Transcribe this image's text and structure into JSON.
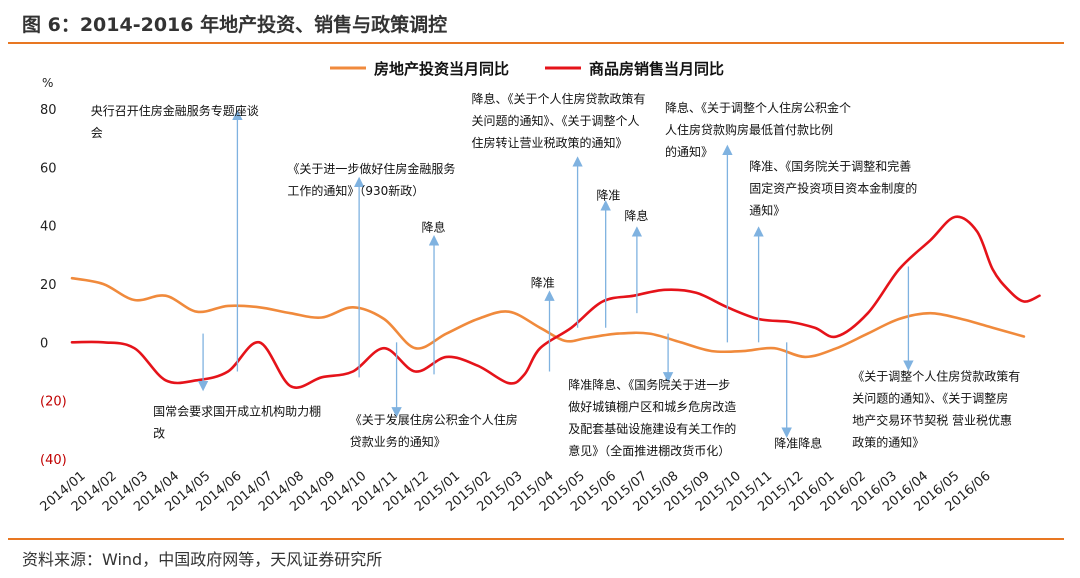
{
  "header": {
    "title": "图 6：2014-2016 年地产投资、销售与政策调控"
  },
  "footer": {
    "source": "资料来源：Wind，中国政府网等，天风证券研究所"
  },
  "colors": {
    "accent": "#e87722",
    "investment": "#f08a3c",
    "sales": "#e5131a",
    "arrow": "#7fb2e0",
    "negative_tick": "#c00000"
  },
  "chart_data": {
    "type": "line",
    "ylabel": "%",
    "ylim": [
      -40,
      80
    ],
    "yticks": [
      80,
      60,
      40,
      20,
      0,
      -20,
      -40
    ],
    "ytick_labels": [
      "80",
      "60",
      "40",
      "20",
      "0",
      "(20)",
      "(40)"
    ],
    "grid": false,
    "legend_position": "top",
    "categories": [
      "2014/01",
      "2014/02",
      "2014/03",
      "2014/04",
      "2014/05",
      "2014/06",
      "2014/07",
      "2014/08",
      "2014/09",
      "2014/10",
      "2014/11",
      "2014/12",
      "2015/01",
      "2015/02",
      "2015/03",
      "2015/04",
      "2015/05",
      "2015/06",
      "2015/07",
      "2015/08",
      "2015/09",
      "2015/10",
      "2015/11",
      "2015/12",
      "2016/01",
      "2016/02",
      "2016/03",
      "2016/04",
      "2016/05",
      "2016/06"
    ],
    "x_range": [
      0,
      30.6
    ],
    "series": [
      {
        "name": "房地产投资当月同比",
        "color": "#f08a3c",
        "points": [
          [
            0,
            22
          ],
          [
            1,
            20
          ],
          [
            2,
            14.5
          ],
          [
            3,
            16
          ],
          [
            4,
            10.5
          ],
          [
            5,
            12.5
          ],
          [
            6,
            12
          ],
          [
            7,
            10
          ],
          [
            8,
            8.5
          ],
          [
            9,
            12
          ],
          [
            10,
            8
          ],
          [
            11,
            -2
          ],
          [
            12,
            3
          ],
          [
            13,
            8
          ],
          [
            14,
            10.5
          ],
          [
            15,
            5
          ],
          [
            15.8,
            0.5
          ],
          [
            16.5,
            1.5
          ],
          [
            17.5,
            3
          ],
          [
            18.5,
            3
          ],
          [
            19.5,
            0
          ],
          [
            20.5,
            -3
          ],
          [
            21.5,
            -3
          ],
          [
            22.5,
            -2
          ],
          [
            23.5,
            -5
          ],
          [
            24.5,
            -2
          ],
          [
            25.5,
            3
          ],
          [
            26.5,
            8
          ],
          [
            27.5,
            10
          ],
          [
            28.5,
            8
          ],
          [
            29.5,
            5
          ],
          [
            30.5,
            2
          ]
        ]
      },
      {
        "name": "商品房销售当月同比",
        "color": "#e5131a",
        "points": [
          [
            0,
            0
          ],
          [
            1,
            0
          ],
          [
            2,
            -2
          ],
          [
            3,
            -13
          ],
          [
            4,
            -13
          ],
          [
            5,
            -10
          ],
          [
            6,
            0
          ],
          [
            7,
            -15
          ],
          [
            8,
            -12
          ],
          [
            9,
            -10
          ],
          [
            10,
            -2
          ],
          [
            11,
            -10
          ],
          [
            12,
            -5
          ],
          [
            13,
            -8
          ],
          [
            14,
            -14
          ],
          [
            14.5,
            -11
          ],
          [
            15,
            -2
          ],
          [
            16,
            5
          ],
          [
            17,
            14
          ],
          [
            18,
            16
          ],
          [
            19,
            18
          ],
          [
            20,
            17
          ],
          [
            21,
            12
          ],
          [
            22,
            8
          ],
          [
            23,
            7
          ],
          [
            23.8,
            5
          ],
          [
            24.5,
            2
          ],
          [
            25.5,
            10
          ],
          [
            26.5,
            25
          ],
          [
            27.5,
            35
          ],
          [
            28.3,
            43
          ],
          [
            29,
            38
          ],
          [
            29.5,
            25
          ],
          [
            30,
            18
          ],
          [
            30.5,
            14
          ],
          [
            31,
            16
          ]
        ]
      }
    ],
    "annotations": [
      {
        "x": 4.2,
        "y_from": 3,
        "y_to": -15,
        "dir": "down",
        "label_lines": [
          "国常会要求国开成立机构助力棚",
          "改"
        ],
        "label_x_cat": 2.6,
        "label_y": -25
      },
      {
        "x": 5.3,
        "y_from": -10,
        "y_to": 78,
        "dir": "up",
        "label_lines": [
          "央行召开住房金融服务专题座谈",
          "会"
        ],
        "label_x_cat": 0.6,
        "label_y": 78
      },
      {
        "x": 9.2,
        "y_from": -12,
        "y_to": 55,
        "dir": "up",
        "label_lines": [
          "《关于进一步做好住房金融服务",
          "工作的通知》（930新政）"
        ],
        "label_x_cat": 6.9,
        "label_y": 58
      },
      {
        "x": 10.4,
        "y_from": 0,
        "y_to": -24,
        "dir": "down",
        "label_lines": [
          "《关于发展住房公积金个人住房",
          "贷款业务的通知》"
        ],
        "label_x_cat": 8.9,
        "label_y": -28
      },
      {
        "x": 11.6,
        "y_from": -11,
        "y_to": 35,
        "dir": "up",
        "label_lines": [
          "降息"
        ],
        "label_x_cat": 11.2,
        "label_y": 38
      },
      {
        "x": 15.3,
        "y_from": -10,
        "y_to": 16,
        "dir": "up",
        "label_lines": [
          "降准"
        ],
        "label_x_cat": 14.7,
        "label_y": 19
      },
      {
        "x": 16.2,
        "y_from": 5,
        "y_to": 62,
        "dir": "up",
        "label_lines": [
          "降息、《关于个人住房贷款政策有",
          "关问题的通知》、《关于调整个人",
          "住房转让营业税政策的通知》"
        ],
        "label_x_cat": 12.8,
        "label_y": 82
      },
      {
        "x": 17.1,
        "y_from": 5,
        "y_to": 47,
        "dir": "up",
        "label_lines": [
          "降准"
        ],
        "label_x_cat": 16.8,
        "label_y": 49
      },
      {
        "x": 18.1,
        "y_from": 10,
        "y_to": 38,
        "dir": "up",
        "label_lines": [
          "降息"
        ],
        "label_x_cat": 17.7,
        "label_y": 42
      },
      {
        "x": 19.1,
        "y_from": 3,
        "y_to": -12,
        "dir": "down",
        "label_lines": [
          "降准降息、《国务院关于进一步",
          "做好城镇棚户区和城乡危房改造",
          "及配套基础设施建设有关工作的",
          "意见》（全面推进棚改货币化）"
        ],
        "label_x_cat": 15.9,
        "label_y": -16
      },
      {
        "x": 21.0,
        "y_from": 0,
        "y_to": 66,
        "dir": "up",
        "label_lines": [
          "降息、《关于调整个人住房公积金个",
          "人住房贷款购房最低首付款比例",
          "的通知》"
        ],
        "label_x_cat": 19.0,
        "label_y": 79
      },
      {
        "x": 22.0,
        "y_from": 0,
        "y_to": 38,
        "dir": "up",
        "label_lines": [
          "降准、《国务院关于调整和完善",
          "固定资产投资项目资本金制度的",
          "通知》"
        ],
        "label_x_cat": 21.7,
        "label_y": 59
      },
      {
        "x": 22.9,
        "y_from": 0,
        "y_to": -31,
        "dir": "down",
        "label_lines": [
          "降准降息"
        ],
        "label_x_cat": 22.5,
        "label_y": -36
      },
      {
        "x": 26.8,
        "y_from": 26,
        "y_to": -8,
        "dir": "down",
        "label_lines": [
          "《关于调整个人住房贷款政策有",
          "关问题的通知》、《关于调整房",
          "地产交易环节契税 营业税优惠",
          "政策的通知》"
        ],
        "label_x_cat": 25.0,
        "label_y": -13
      }
    ]
  }
}
